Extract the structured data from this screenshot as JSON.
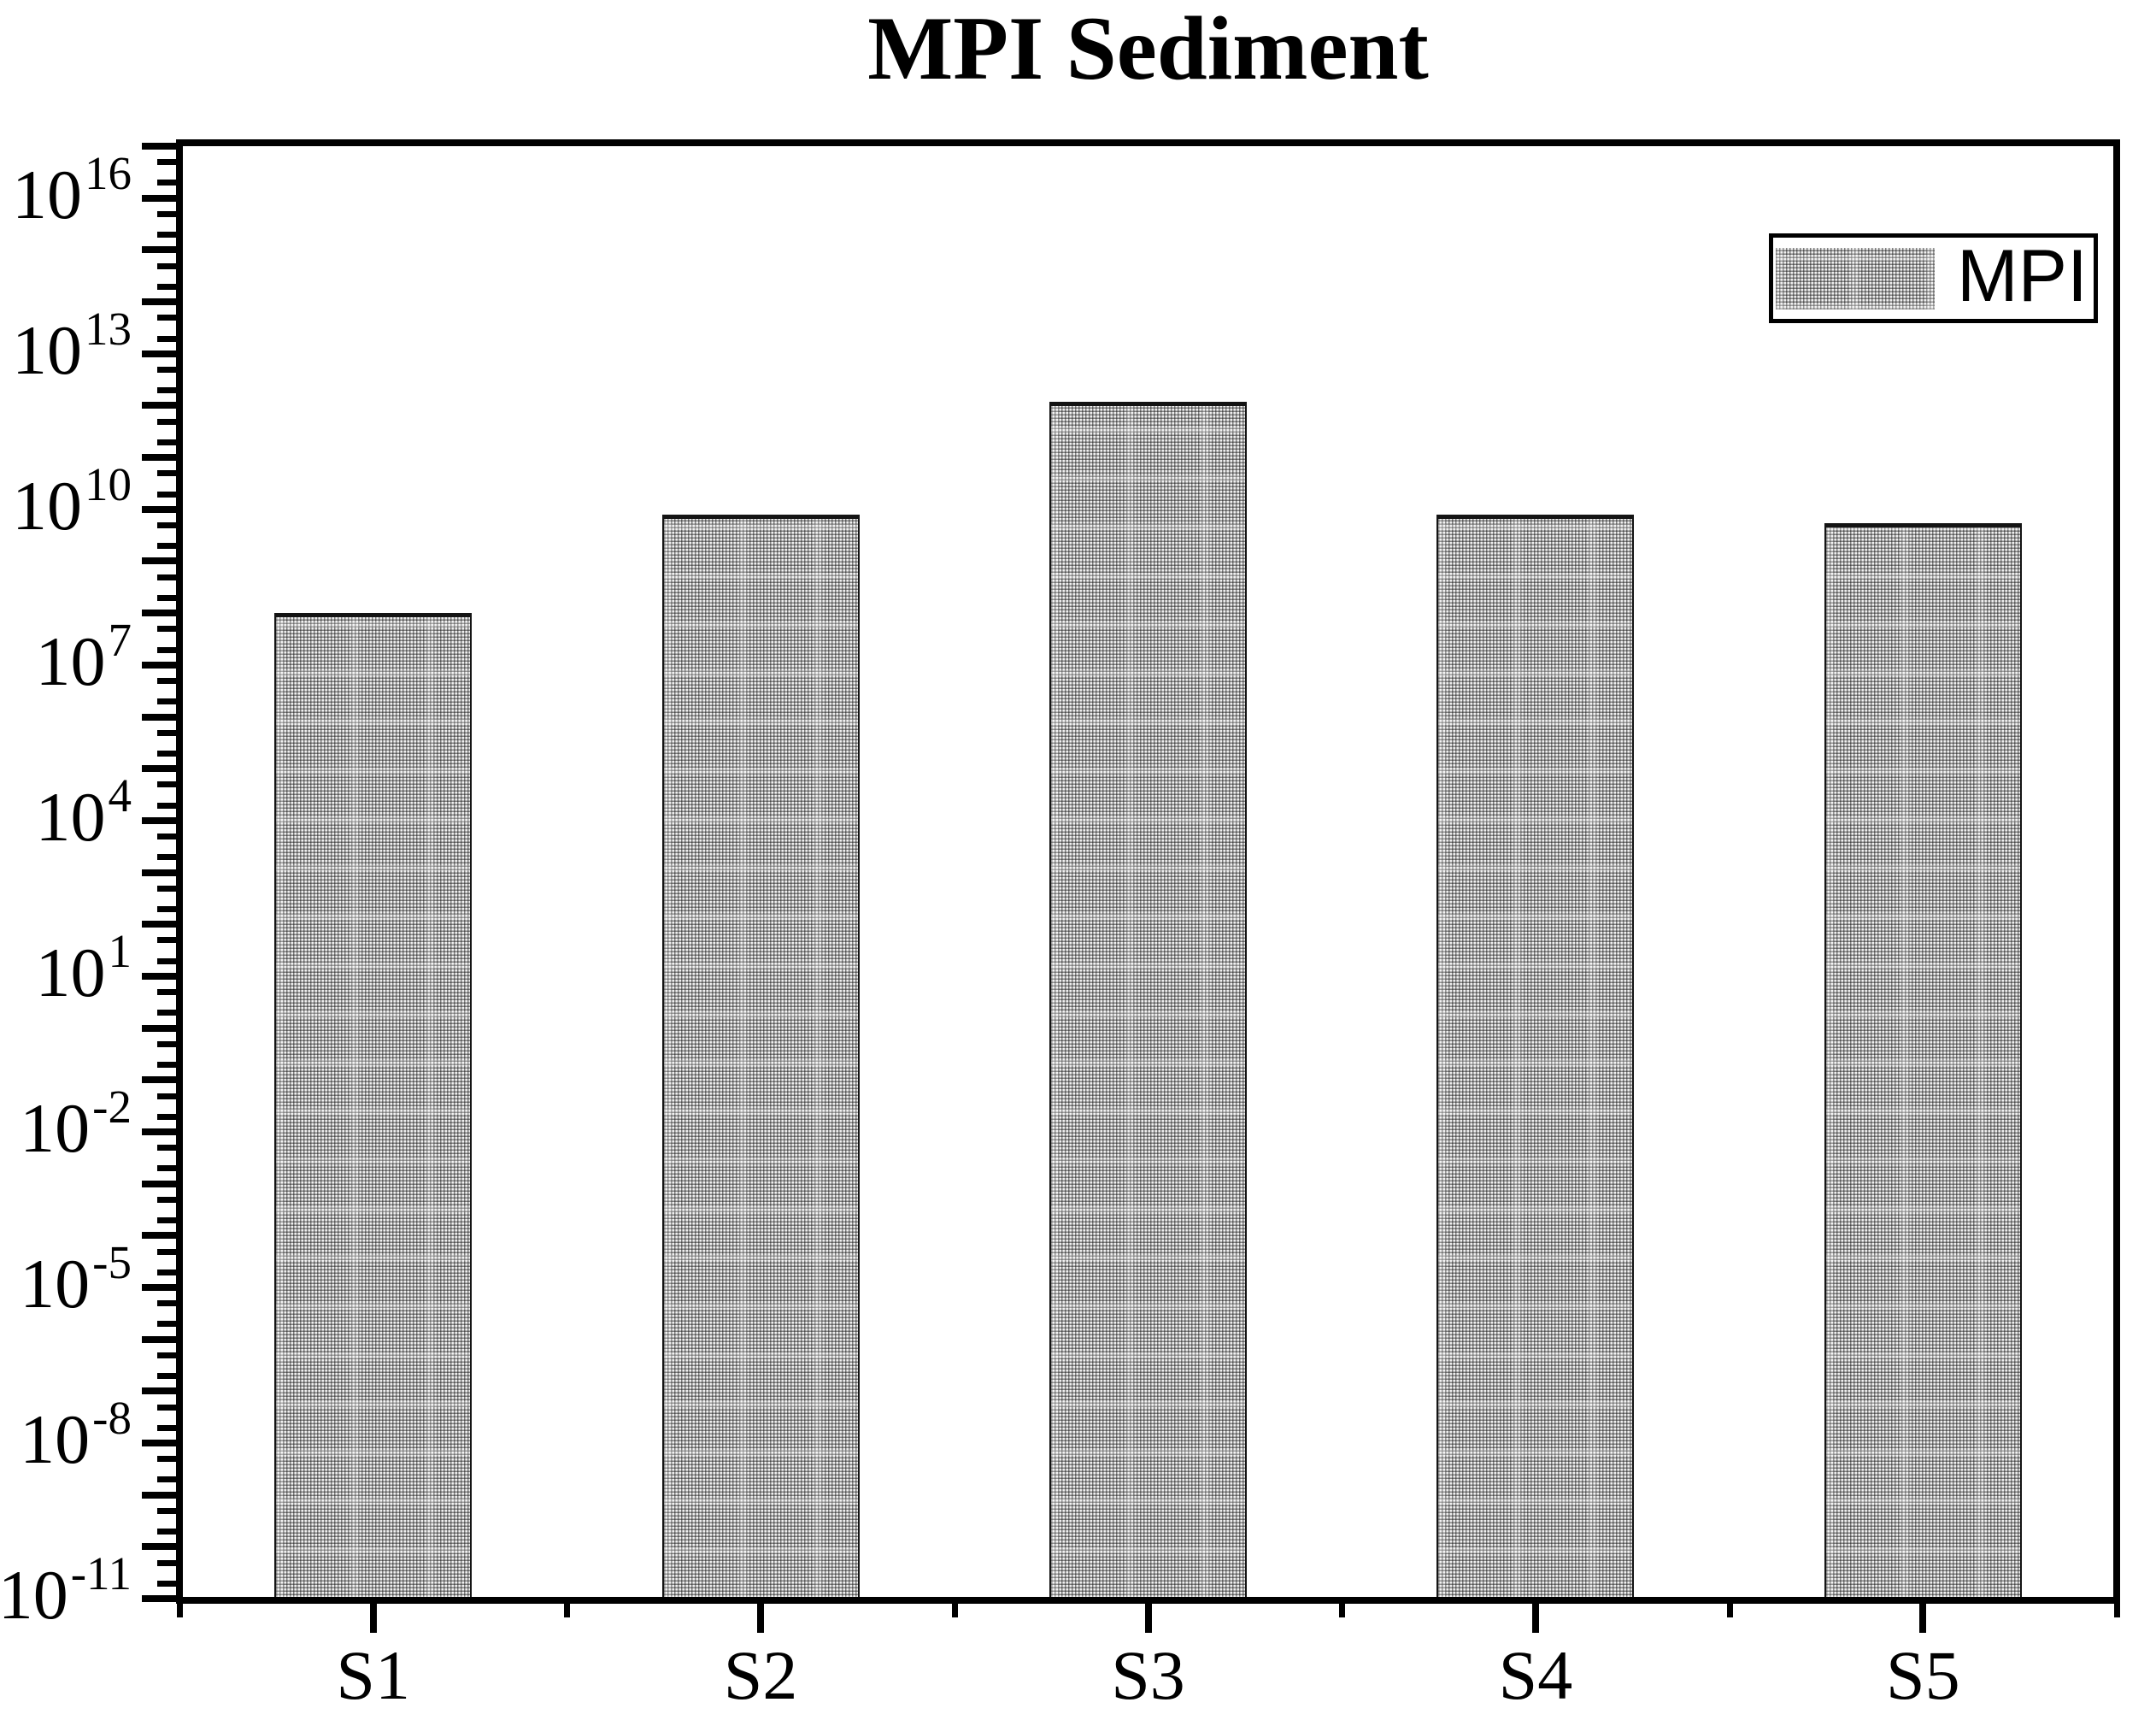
{
  "title": "MPI Sediment",
  "legend": {
    "label": "MPI",
    "swatch": "dense-dot-hatch-gray"
  },
  "y_axis": {
    "base": "10",
    "min_exponent": -11,
    "max_exponent": 17.1,
    "labeled_exponents": [
      16,
      13,
      10,
      7,
      4,
      1,
      -2,
      -5,
      -8,
      -11
    ],
    "label_step_decades": 3,
    "minor_ticks_at": [
      2,
      5
    ]
  },
  "x_axis": {
    "categories": [
      "S1",
      "S2",
      "S3",
      "S4",
      "S5"
    ]
  },
  "chart_data": {
    "type": "bar",
    "title": "MPI Sediment",
    "categories": [
      "S1",
      "S2",
      "S3",
      "S4",
      "S5"
    ],
    "series": [
      {
        "name": "MPI",
        "values": [
          100000000.0,
          8000000000.0,
          1200000000000.0,
          8000000000.0,
          5500000000.0
        ]
      }
    ],
    "values_log10_estimate": [
      8.0,
      9.9,
      12.08,
      9.9,
      9.74
    ],
    "yscale": "log",
    "ylim": [
      1e-11,
      1.26e+17
    ],
    "ytick_label_exponents": [
      16,
      13,
      10,
      7,
      4,
      1,
      -2,
      -5,
      -8,
      -11
    ],
    "xlabel": "",
    "ylabel": "",
    "grid": false,
    "legend_entries": [
      "MPI"
    ],
    "legend_position": "upper-right",
    "bar_fill": "dense dot-grid hatch pattern",
    "bar_color_average": "#c8c8c8",
    "edge_color": "#000000",
    "background_color": "#ffffff"
  }
}
